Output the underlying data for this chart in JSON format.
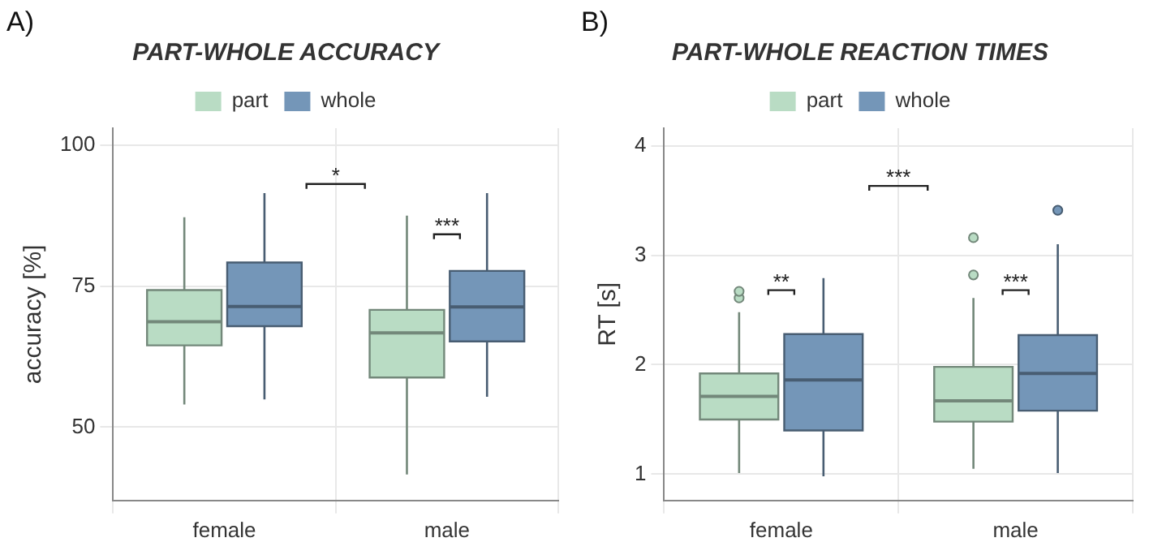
{
  "chart_data": [
    {
      "type": "box",
      "title": "PART-WHOLE ACCURACY",
      "ylabel": "accuracy [%]",
      "categories": [
        "female",
        "male"
      ],
      "series": [
        {
          "name": "part",
          "color": "#b9dcc4",
          "boxes": [
            {
              "low": 54,
              "q1": 64.5,
              "median": 68.7,
              "q3": 74.3,
              "high": 87.2
            },
            {
              "low": 41.6,
              "q1": 58.8,
              "median": 66.7,
              "q3": 70.8,
              "high": 87.5
            }
          ]
        },
        {
          "name": "whole",
          "color": "#7496b8",
          "boxes": [
            {
              "low": 54.9,
              "q1": 67.9,
              "median": 71.4,
              "q3": 79.2,
              "high": 91.5
            },
            {
              "low": 55.4,
              "q1": 65.2,
              "median": 71.3,
              "q3": 77.7,
              "high": 91.5
            }
          ]
        }
      ],
      "ylim": [
        37,
        103
      ],
      "yticks": [
        50,
        75,
        100
      ],
      "grid": true,
      "legend": "top",
      "annotations": [
        "A)",
        "*",
        "***"
      ]
    },
    {
      "type": "box",
      "title": "PART-WHOLE REACTION TIMES",
      "ylabel": "RT [s]",
      "categories": [
        "female",
        "male"
      ],
      "series": [
        {
          "name": "part",
          "color": "#b9dcc4",
          "boxes": [
            {
              "low": 1.01,
              "q1": 1.5,
              "median": 1.71,
              "q3": 1.92,
              "high": 2.48,
              "outliers": [
                2.61,
                2.67
              ]
            },
            {
              "low": 1.05,
              "q1": 1.48,
              "median": 1.67,
              "q3": 1.98,
              "high": 2.61,
              "outliers": [
                2.82,
                3.16
              ]
            }
          ]
        },
        {
          "name": "whole",
          "color": "#7496b8",
          "boxes": [
            {
              "low": 0.98,
              "q1": 1.4,
              "median": 1.86,
              "q3": 2.28,
              "high": 2.79
            },
            {
              "low": 1.01,
              "q1": 1.58,
              "median": 1.92,
              "q3": 2.27,
              "high": 3.1,
              "outliers": [
                3.41
              ]
            }
          ]
        }
      ],
      "ylim": [
        0.76,
        4.16
      ],
      "yticks": [
        1,
        2,
        3,
        4
      ],
      "grid": true,
      "legend": "top",
      "annotations": [
        "B)",
        "***",
        "**",
        "***"
      ]
    }
  ]
}
